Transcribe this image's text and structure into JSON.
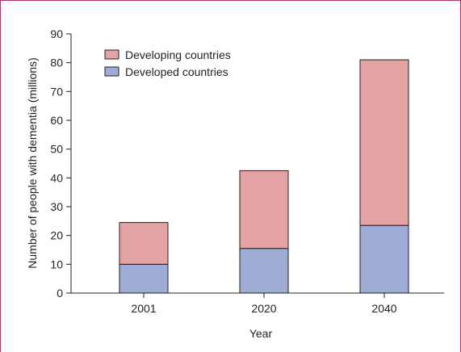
{
  "chart_data": {
    "type": "bar",
    "stacked": true,
    "categories": [
      "2001",
      "2020",
      "2040"
    ],
    "series": [
      {
        "name": "Developed countries",
        "values": [
          10,
          15.5,
          23.5
        ],
        "color": "#9fadd6"
      },
      {
        "name": "Developing countries",
        "values": [
          14.5,
          27,
          57.5
        ],
        "color": "#e3a3a3"
      }
    ],
    "legend": {
      "position": "top-left",
      "order": [
        "Developing countries",
        "Developed countries"
      ]
    },
    "xlabel": "Year",
    "ylabel": "Number of people with dementia (millions)",
    "ylim": [
      0,
      90
    ],
    "yticks": [
      0,
      10,
      20,
      30,
      40,
      50,
      60,
      70,
      80,
      90
    ],
    "grid": false
  },
  "colors": {
    "frame": "#b3346b",
    "axis": "#231f20"
  }
}
